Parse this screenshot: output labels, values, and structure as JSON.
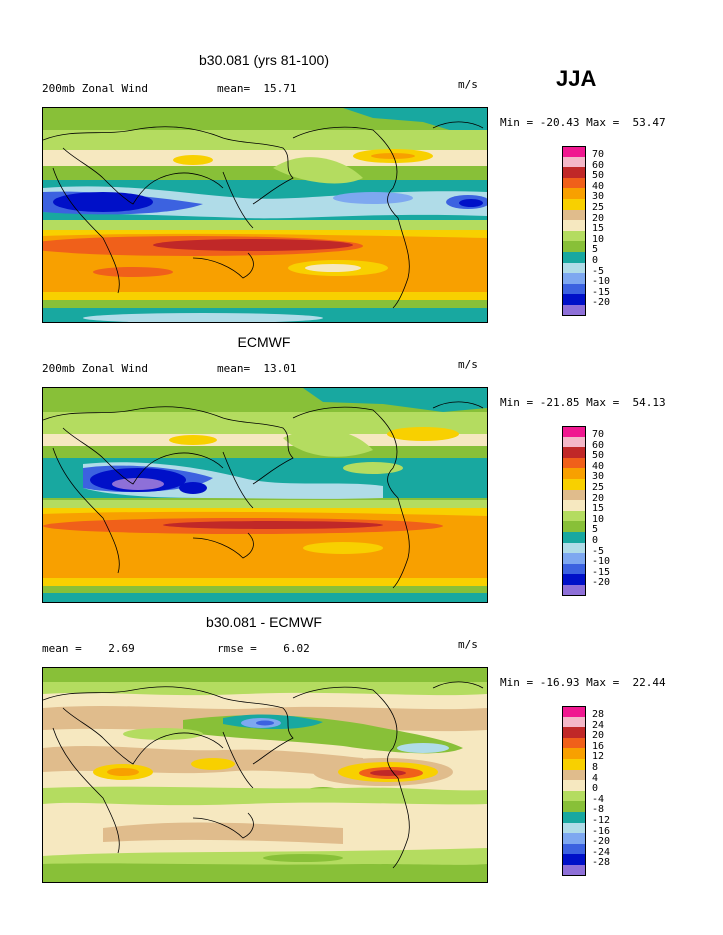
{
  "season": "JJA",
  "palette": [
    "#8e70d8",
    "#0010c8",
    "#3c62e0",
    "#7ea8f0",
    "#b0dce8",
    "#18a8a0",
    "#88c038",
    "#b4dc60",
    "#f6e8c0",
    "#e0bc8c",
    "#f8d000",
    "#f8a000",
    "#f0601a",
    "#c02828",
    "#f4b8c8",
    "#f01890"
  ],
  "panels": [
    {
      "title": "b30.081 (yrs 81-100)",
      "left_label": "200mb Zonal Wind",
      "mean_label": "mean=  15.71",
      "rmse_label": "",
      "units": "m/s",
      "minmax": "Min = -20.43 Max =  53.47",
      "levels": [
        "70",
        "60",
        "50",
        "40",
        "30",
        "25",
        "20",
        "15",
        "10",
        "5",
        "0",
        "-5",
        "-10",
        "-15",
        "-20"
      ]
    },
    {
      "title": "ECMWF",
      "left_label": "200mb Zonal Wind",
      "mean_label": "mean=  13.01",
      "rmse_label": "",
      "units": "m/s",
      "minmax": "Min = -21.85 Max =  54.13",
      "levels": [
        "70",
        "60",
        "50",
        "40",
        "30",
        "25",
        "20",
        "15",
        "10",
        "5",
        "0",
        "-5",
        "-10",
        "-15",
        "-20"
      ]
    },
    {
      "title": "b30.081 - ECMWF",
      "left_label": "mean =    2.69",
      "mean_label": "",
      "rmse_label": "rmse =    6.02",
      "units": "m/s",
      "minmax": "Min = -16.93 Max =  22.44",
      "levels": [
        "28",
        "24",
        "20",
        "16",
        "12",
        "8",
        "4",
        "0",
        "-4",
        "-8",
        "-12",
        "-16",
        "-20",
        "-24",
        "-28"
      ]
    }
  ]
}
